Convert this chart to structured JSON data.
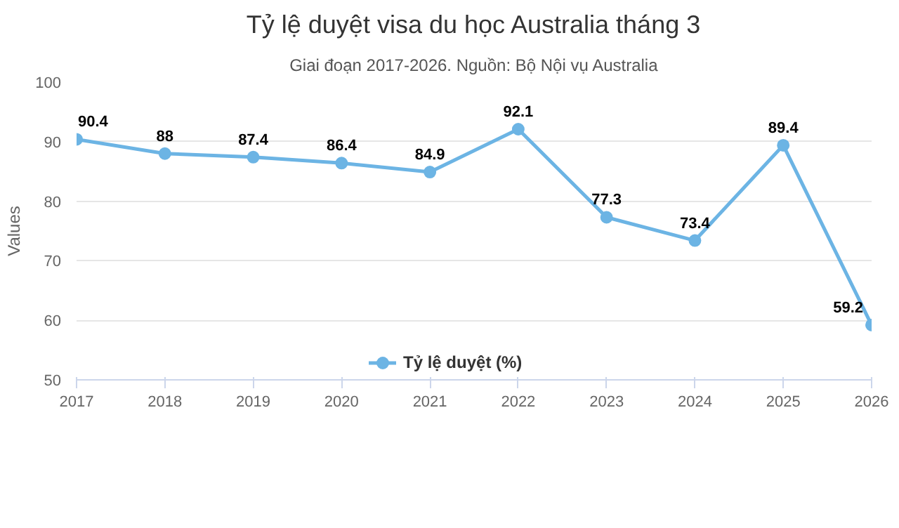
{
  "chart_data": {
    "type": "line",
    "title": "Tỷ lệ duyệt visa du học Australia tháng 3",
    "subtitle": "Giai đoạn 2017-2026. Nguồn: Bộ Nội vụ Australia",
    "ylabel": "Values",
    "x": [
      2017,
      2018,
      2019,
      2020,
      2021,
      2022,
      2023,
      2024,
      2025,
      2026
    ],
    "series": [
      {
        "name": "Tỷ lệ duyệt (%)",
        "color": "#6cb4e4",
        "values": [
          90.4,
          88,
          87.4,
          86.4,
          84.9,
          92.1,
          77.3,
          73.4,
          89.4,
          59.2
        ]
      }
    ],
    "xlim": [
      2017,
      2026
    ],
    "xticks": [
      2017,
      2018,
      2019,
      2020,
      2021,
      2022,
      2023,
      2024,
      2025,
      2026
    ],
    "ylim": [
      50,
      100
    ],
    "yticks": [
      50,
      60,
      70,
      80,
      90,
      100
    ],
    "grid": "y",
    "legend": "bottom",
    "marker": "circle",
    "line_style": "solid",
    "data_labels": true
  }
}
